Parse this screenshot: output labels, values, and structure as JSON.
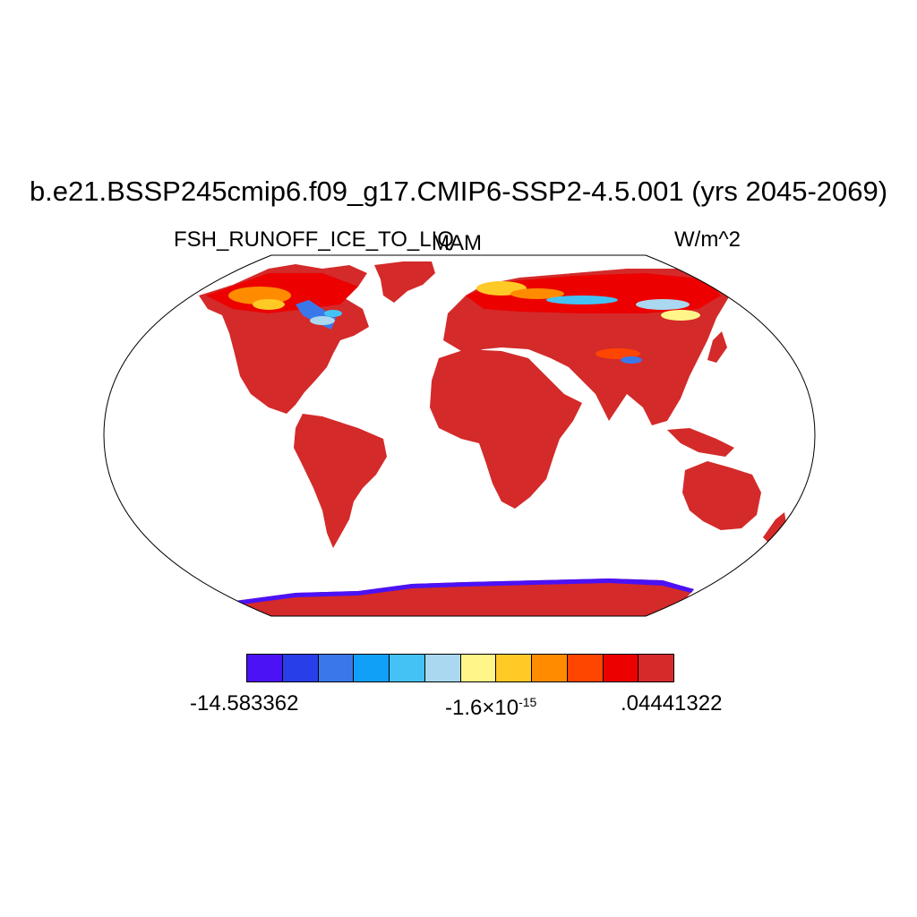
{
  "title": "b.e21.BSSP245cmip6.f09_g17.CMIP6-SSP2-4.5.001 (yrs 2045-2069)",
  "variable": "FSH_RUNOFF_ICE_TO_LIQ",
  "season": "MAM",
  "units": "W/m^2",
  "colorbar": {
    "colors": [
      "#4a12f5",
      "#283ee8",
      "#3a78ea",
      "#10a0f8",
      "#44c2f6",
      "#aad8f0",
      "#fff68a",
      "#ffc926",
      "#ff8c00",
      "#ff4600",
      "#ec0000",
      "#d42a2a"
    ],
    "min_label": "-14.583362",
    "mid_mantissa": "-1.6",
    "mid_times": "×10",
    "mid_exponent": "-15",
    "max_label": ".04441322"
  },
  "map": {
    "projection": "robinson",
    "land_color": "#d42a2a",
    "ocean_color": "#ffffff",
    "high_latitude_color": "#ec0000"
  }
}
